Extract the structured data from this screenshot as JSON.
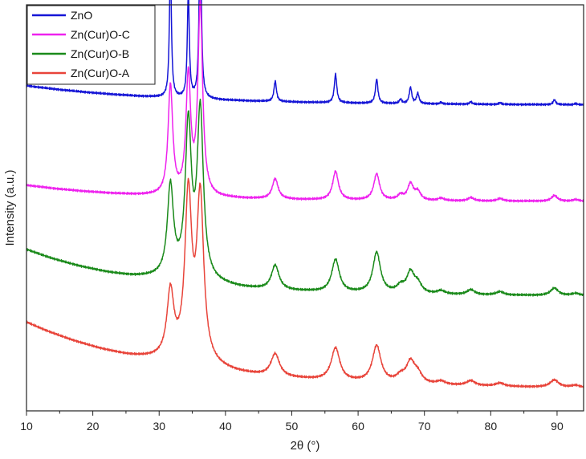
{
  "chart_data": {
    "type": "line",
    "xlabel": "2θ (°)",
    "ylabel": "Intensity (a.u.)",
    "xlim": [
      10,
      94
    ],
    "x_ticks": [
      10,
      20,
      30,
      40,
      50,
      60,
      70,
      80,
      90
    ],
    "y_ticks_labeled": false,
    "grid": false,
    "legend_position": "top-left",
    "peaks_2theta": [
      31.7,
      34.4,
      36.2,
      47.5,
      56.6,
      62.8,
      66.4,
      67.9,
      69.0,
      72.5,
      77.0,
      81.4,
      89.6,
      92.8
    ],
    "series": [
      {
        "name": "ZnO",
        "color": "#1515d6",
        "x": [
          10,
          20,
          30,
          31.7,
          34.4,
          36.2,
          47.5,
          56.6,
          62.8,
          67.9,
          69.0,
          77.0,
          89.6,
          94
        ],
        "y_rel": [
          0.21,
          0.13,
          0.07,
          0.33,
          0.26,
          0.48,
          0.1,
          0.14,
          0.12,
          0.08,
          0.07,
          0.02,
          0.03,
          0.0
        ]
      },
      {
        "name": "Zn(Cur)O-C",
        "color": "#ee22ee",
        "x": [
          10,
          20,
          30,
          31.7,
          34.4,
          36.2,
          47.5,
          56.6,
          62.8,
          67.9,
          69.0,
          77.0,
          89.6,
          94
        ],
        "y_rel": [
          0.18,
          0.1,
          0.05,
          0.27,
          0.29,
          0.47,
          0.1,
          0.14,
          0.13,
          0.08,
          0.05,
          0.02,
          0.03,
          0.0
        ]
      },
      {
        "name": "Zn(Cur)O-B",
        "color": "#1a8a1a",
        "x": [
          10,
          20,
          30,
          31.7,
          34.4,
          36.2,
          47.5,
          56.6,
          62.8,
          67.9,
          69.0,
          77.0,
          89.6,
          94
        ],
        "y_rel": [
          0.39,
          0.27,
          0.17,
          0.36,
          0.54,
          0.57,
          0.15,
          0.18,
          0.21,
          0.15,
          0.07,
          0.02,
          0.05,
          0.0
        ]
      },
      {
        "name": "Zn(Cur)O-A",
        "color": "#e8443a",
        "x": [
          10,
          20,
          30,
          31.7,
          34.4,
          36.2,
          47.5,
          56.6,
          62.8,
          67.9,
          69.0,
          77.0,
          89.6,
          94
        ],
        "y_rel": [
          0.62,
          0.43,
          0.23,
          0.4,
          0.62,
          0.63,
          0.16,
          0.2,
          0.23,
          0.16,
          0.08,
          0.03,
          0.05,
          0.0
        ]
      }
    ]
  }
}
